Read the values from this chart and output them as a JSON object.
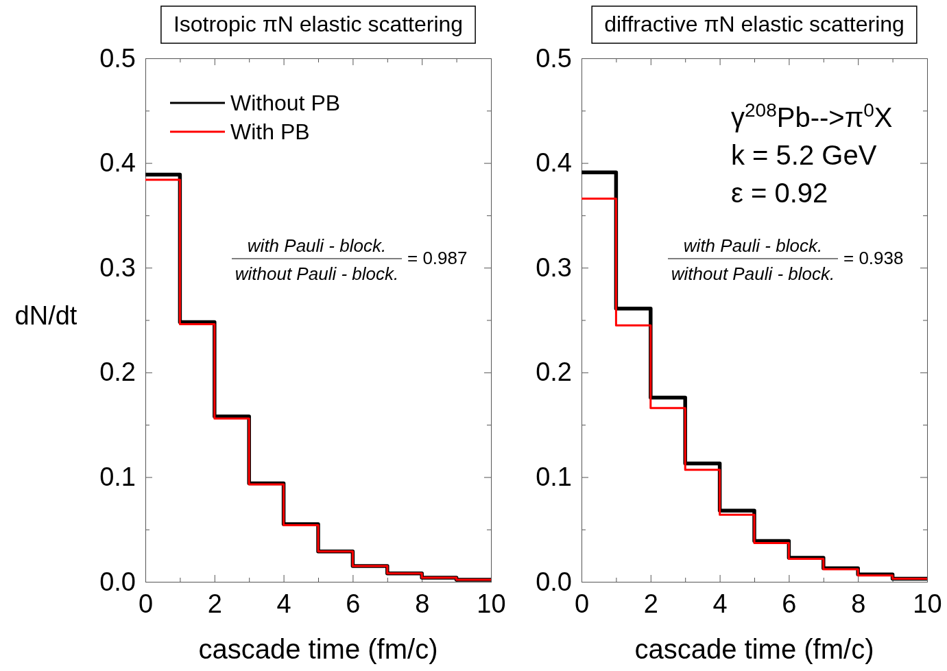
{
  "chart_data": [
    {
      "type": "step",
      "title": "Isotropic πN elastic scattering",
      "xlabel": "cascade time (fm/c)",
      "ylabel": "dN/dt",
      "x": [
        0,
        1,
        2,
        3,
        4,
        5,
        6,
        7,
        8,
        9,
        10
      ],
      "series": [
        {
          "name": "Without PB",
          "color": "#000000",
          "values": [
            0.389,
            0.248,
            0.158,
            0.094,
            0.055,
            0.029,
            0.015,
            0.008,
            0.004,
            0.002,
            0.002
          ]
        },
        {
          "name": "With PB",
          "color": "#ff0000",
          "values": [
            0.384,
            0.246,
            0.156,
            0.093,
            0.054,
            0.029,
            0.015,
            0.008,
            0.004,
            0.002,
            0.002
          ]
        }
      ],
      "xlim": [
        0,
        10
      ],
      "xticks": [
        0,
        {
          "value": 1,
          "label": null
        },
        2,
        {
          "value": 3,
          "label": null
        },
        4,
        {
          "value": 5,
          "label": null
        },
        6,
        {
          "value": 7,
          "label": null
        },
        8,
        {
          "value": 9,
          "label": null
        },
        10
      ],
      "ylim": [
        0,
        0.5
      ],
      "yticks": [
        {
          "value": 0,
          "label": "0.0"
        },
        {
          "value": 0.05,
          "label": null
        },
        0.1,
        {
          "value": 0.15,
          "label": null
        },
        0.2,
        {
          "value": 0.25,
          "label": null
        },
        0.3,
        {
          "value": 0.35,
          "label": null
        },
        0.4,
        {
          "value": 0.45,
          "label": null
        },
        0.5
      ],
      "legend": "top left",
      "line_style": "solid",
      "annotations": [
        "with Pauli - block.",
        "without Pauli - block.",
        "= 0.987"
      ]
    },
    {
      "type": "step",
      "title": "diffractive πN elastic scattering",
      "xlabel": "cascade time (fm/c)",
      "x": [
        0,
        1,
        2,
        3,
        4,
        5,
        6,
        7,
        8,
        9,
        10
      ],
      "series": [
        {
          "color": "#000000",
          "values": [
            0.391,
            0.261,
            0.176,
            0.113,
            0.068,
            0.039,
            0.023,
            0.013,
            0.007,
            0.003,
            0.003
          ]
        },
        {
          "color": "#ff0000",
          "values": [
            0.366,
            0.245,
            0.166,
            0.107,
            0.064,
            0.037,
            0.022,
            0.012,
            0.006,
            0.003,
            0.003
          ]
        }
      ],
      "xlim": [
        0,
        10
      ],
      "xticks": [
        0,
        {
          "value": 1,
          "label": null
        },
        2,
        {
          "value": 3,
          "label": null
        },
        4,
        {
          "value": 5,
          "label": null
        },
        6,
        {
          "value": 7,
          "label": null
        },
        8,
        {
          "value": 9,
          "label": null
        },
        10
      ],
      "ylim": [
        0,
        0.5
      ],
      "yticks": [
        {
          "value": 0,
          "label": "0.0"
        },
        {
          "value": 0.05,
          "label": null
        },
        0.1,
        {
          "value": 0.15,
          "label": null
        },
        0.2,
        {
          "value": 0.25,
          "label": null
        },
        0.3,
        {
          "value": 0.35,
          "label": null
        },
        0.4,
        {
          "value": 0.45,
          "label": null
        },
        0.5
      ],
      "line_style": "solid",
      "annotations": [
        "γ$^{208}$Pb-->π$^{0}$X",
        "k = 5.2 GeV",
        "ε = 0.92",
        "with Pauli - block.",
        "without Pauli - block.",
        "= 0.938"
      ]
    }
  ]
}
